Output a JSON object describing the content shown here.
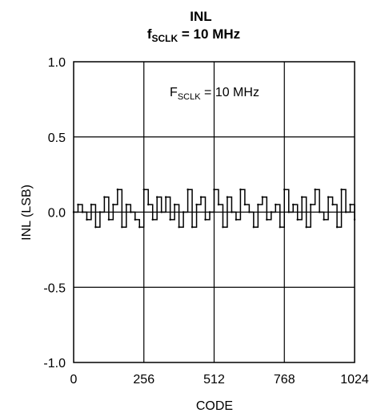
{
  "chart_data": {
    "type": "line",
    "title": "INL",
    "subtitle": {
      "var": "f",
      "sub": "SCLK",
      "rest": " = 10 MHz"
    },
    "annotation": {
      "var": "F",
      "sub": "SCLK",
      "rest": " = 10 MHz"
    },
    "xlabel": "CODE",
    "ylabel": "INL (LSB)",
    "xlim": [
      0,
      1024
    ],
    "ylim": [
      -1.0,
      1.0
    ],
    "x_ticks": [
      0,
      256,
      512,
      768,
      1024
    ],
    "x_tick_labels": [
      "0",
      "256",
      "512",
      "768",
      "1024"
    ],
    "y_ticks": [
      1.0,
      0.5,
      0.0,
      -0.5,
      -1.0
    ],
    "y_tick_labels": [
      "1.0",
      "0.5",
      "0.0",
      "-0.5",
      "-1.0"
    ],
    "grid": true,
    "legend": "none",
    "line_color": "#000000",
    "series": [
      {
        "x": [
          0,
          16,
          32,
          48,
          64,
          80,
          96,
          112,
          128,
          144,
          160,
          176,
          192,
          208,
          224,
          240,
          256,
          272,
          288,
          304,
          320,
          336,
          352,
          368,
          384,
          400,
          416,
          432,
          448,
          464,
          480,
          496,
          512,
          528,
          544,
          560,
          576,
          592,
          608,
          624,
          640,
          656,
          672,
          688,
          704,
          720,
          736,
          752,
          768,
          784,
          800,
          816,
          832,
          848,
          864,
          880,
          896,
          912,
          928,
          944,
          960,
          976,
          992,
          1008,
          1024
        ],
        "y": [
          0.0,
          0.05,
          0.0,
          -0.05,
          0.05,
          -0.1,
          0.0,
          0.1,
          -0.05,
          0.05,
          0.15,
          -0.1,
          0.05,
          0.0,
          -0.05,
          -0.1,
          0.15,
          0.05,
          -0.05,
          0.1,
          0.0,
          0.1,
          -0.05,
          0.05,
          -0.1,
          0.0,
          0.15,
          -0.1,
          0.05,
          0.1,
          -0.05,
          0.0,
          0.15,
          0.05,
          -0.1,
          0.1,
          0.0,
          -0.05,
          0.15,
          0.05,
          0.0,
          -0.1,
          0.05,
          0.1,
          -0.05,
          0.0,
          0.05,
          -0.1,
          0.15,
          0.0,
          0.05,
          -0.05,
          0.1,
          -0.1,
          0.05,
          0.15,
          0.0,
          -0.05,
          0.1,
          0.05,
          -0.1,
          0.15,
          0.0,
          0.05,
          -0.05
        ]
      }
    ]
  }
}
